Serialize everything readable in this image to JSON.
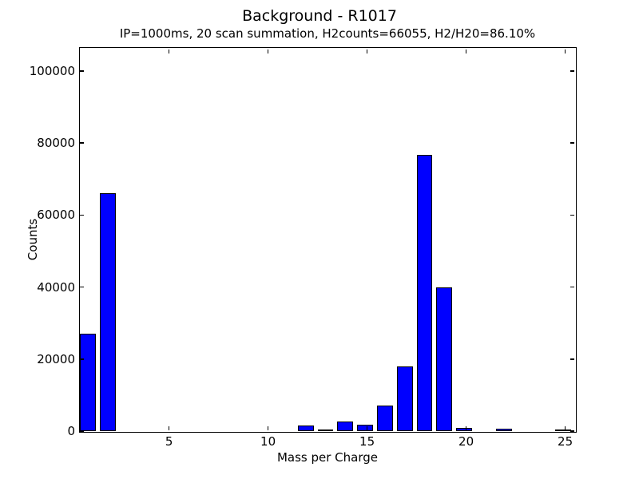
{
  "figure": {
    "title": "Background - R1017",
    "subtitle": "IP=1000ms, 20 scan summation, H2counts=66055, H2/H20=86.10%",
    "background_color": "#ffffff",
    "axis_color": "#000000"
  },
  "chart_data": {
    "type": "bar",
    "title": "Background - R1017",
    "subtitle": "IP=1000ms, 20 scan summation, H2counts=66055, H2/H20=86.10%",
    "xlabel": "Mass per Charge",
    "ylabel": "Counts",
    "xlim": [
      0.5,
      25.5
    ],
    "ylim": [
      0,
      106400
    ],
    "xticks": [
      5,
      10,
      15,
      20,
      25
    ],
    "yticks": [
      0,
      20000,
      40000,
      60000,
      80000,
      100000
    ],
    "grid": false,
    "legend": null,
    "bar_width": 0.8,
    "bar_color": "#0000ff",
    "bar_edge_color": "#000000",
    "tick_direction": "in",
    "points": [
      {
        "x": 1,
        "y": 27050
      },
      {
        "x": 2,
        "y": 66055
      },
      {
        "x": 12,
        "y": 1650
      },
      {
        "x": 13,
        "y": 370
      },
      {
        "x": 14,
        "y": 2590
      },
      {
        "x": 15,
        "y": 1840
      },
      {
        "x": 16,
        "y": 7030
      },
      {
        "x": 17,
        "y": 17980
      },
      {
        "x": 18,
        "y": 76719
      },
      {
        "x": 19,
        "y": 39960
      },
      {
        "x": 20,
        "y": 950
      },
      {
        "x": 22,
        "y": 700
      },
      {
        "x": 25,
        "y": 420
      }
    ]
  }
}
